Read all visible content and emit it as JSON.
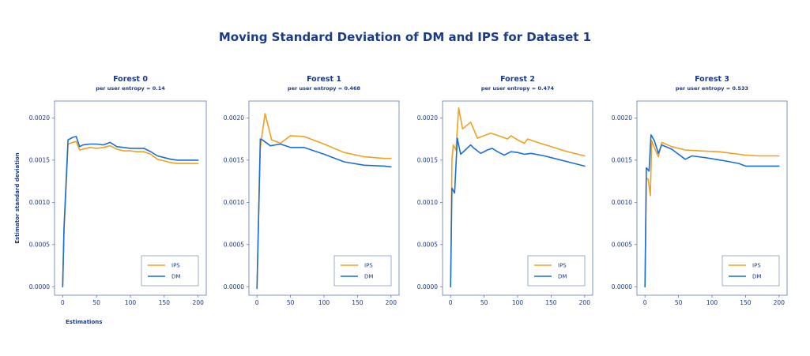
{
  "title": "Moving Standard Deviation of DM and IPS for Dataset 1",
  "colors": {
    "IPS": "#f0a020",
    "DM": "#1a6fd6",
    "axis": "#5a7ab0",
    "text": "#1a3a8a"
  },
  "chart_data": [
    {
      "type": "line",
      "title": "Forest 0",
      "subtitle": "per user entropy = 0.14",
      "xlabel": "Estimations",
      "ylabel": "Estimator standard deviation",
      "xlim": [
        -12,
        212
      ],
      "ylim": [
        -0.0001,
        0.0022
      ],
      "xticks": [
        0,
        50,
        100,
        150,
        200
      ],
      "yticks": [
        "0.0000",
        "0.0005",
        "0.0010",
        "0.0015",
        "0.0020"
      ],
      "legend": "bottom-right",
      "series": [
        {
          "name": "IPS",
          "x": [
            0,
            2,
            8,
            15,
            20,
            25,
            30,
            40,
            50,
            60,
            70,
            80,
            90,
            100,
            110,
            120,
            130,
            140,
            150,
            160,
            170,
            180,
            190,
            200
          ],
          "y": [
            0.0,
            0.00065,
            0.00169,
            0.00171,
            0.00172,
            0.00162,
            0.00163,
            0.00165,
            0.00164,
            0.00165,
            0.00167,
            0.00163,
            0.00161,
            0.00161,
            0.0016,
            0.0016,
            0.00157,
            0.00151,
            0.00149,
            0.00147,
            0.00146,
            0.00146,
            0.00146,
            0.00146
          ]
        },
        {
          "name": "DM",
          "x": [
            0,
            2,
            8,
            15,
            20,
            25,
            30,
            40,
            50,
            60,
            70,
            80,
            90,
            100,
            110,
            120,
            130,
            140,
            150,
            160,
            170,
            180,
            190,
            200
          ],
          "y": [
            0.0,
            0.0007,
            0.00174,
            0.00177,
            0.00178,
            0.00166,
            0.00168,
            0.00169,
            0.00169,
            0.00168,
            0.00171,
            0.00166,
            0.00165,
            0.00164,
            0.00164,
            0.00164,
            0.0016,
            0.00155,
            0.00153,
            0.00151,
            0.0015,
            0.0015,
            0.0015,
            0.0015
          ]
        }
      ]
    },
    {
      "type": "line",
      "title": "Forest 1",
      "subtitle": "per user entropy = 0.468",
      "xlim": [
        -12,
        212
      ],
      "ylim": [
        -0.0001,
        0.0022
      ],
      "xticks": [
        0,
        50,
        100,
        150,
        200
      ],
      "yticks": [
        "0.0000",
        "0.0005",
        "0.0010",
        "0.0015",
        "0.0020"
      ],
      "legend": "bottom-right",
      "series": [
        {
          "name": "IPS",
          "x": [
            0,
            5,
            12,
            22,
            35,
            50,
            70,
            100,
            130,
            160,
            190,
            200
          ],
          "y": [
            -2e-05,
            0.00165,
            0.00205,
            0.00174,
            0.0017,
            0.00179,
            0.00178,
            0.00169,
            0.00159,
            0.00154,
            0.00152,
            0.00152
          ]
        },
        {
          "name": "DM",
          "x": [
            0,
            5,
            8,
            20,
            35,
            50,
            70,
            100,
            130,
            160,
            190,
            200
          ],
          "y": [
            -2e-05,
            0.00175,
            0.00174,
            0.00167,
            0.00169,
            0.00165,
            0.00165,
            0.00157,
            0.00148,
            0.00144,
            0.00143,
            0.00142
          ]
        }
      ]
    },
    {
      "type": "line",
      "title": "Forest 2",
      "subtitle": "per user entropy = 0.474",
      "xlim": [
        -12,
        212
      ],
      "ylim": [
        -0.0001,
        0.0022
      ],
      "xticks": [
        0,
        50,
        100,
        150,
        200
      ],
      "yticks": [
        "0.0000",
        "0.0005",
        "0.0010",
        "0.0015",
        "0.0020"
      ],
      "legend": "bottom-right",
      "series": [
        {
          "name": "IPS",
          "x": [
            0,
            2,
            4,
            8,
            12,
            18,
            30,
            40,
            50,
            60,
            75,
            85,
            90,
            100,
            110,
            115,
            130,
            150,
            170,
            190,
            200
          ],
          "y": [
            0.0,
            0.0015,
            0.00168,
            0.00162,
            0.00212,
            0.00187,
            0.00195,
            0.00176,
            0.00179,
            0.00182,
            0.00178,
            0.00175,
            0.00179,
            0.00174,
            0.0017,
            0.00175,
            0.00171,
            0.00166,
            0.00161,
            0.00157,
            0.00155
          ]
        },
        {
          "name": "DM",
          "x": [
            0,
            2,
            6,
            10,
            15,
            22,
            30,
            35,
            45,
            55,
            62,
            70,
            80,
            85,
            90,
            100,
            110,
            120,
            140,
            160,
            180,
            200
          ],
          "y": [
            0.0,
            0.00117,
            0.00111,
            0.00176,
            0.00157,
            0.00162,
            0.00168,
            0.00164,
            0.00158,
            0.00162,
            0.00164,
            0.0016,
            0.00156,
            0.00158,
            0.0016,
            0.00159,
            0.00157,
            0.00158,
            0.00155,
            0.00151,
            0.00147,
            0.00143
          ]
        }
      ]
    },
    {
      "type": "line",
      "title": "Forest 3",
      "subtitle": "per user entropy = 0.533",
      "xlim": [
        -12,
        212
      ],
      "ylim": [
        -0.0001,
        0.0022
      ],
      "xticks": [
        0,
        50,
        100,
        150,
        200
      ],
      "yticks": [
        "0.0000",
        "0.0005",
        "0.0010",
        "0.0015",
        "0.0020"
      ],
      "legend": "bottom-right",
      "series": [
        {
          "name": "IPS",
          "x": [
            0,
            2,
            5,
            8,
            10,
            15,
            20,
            25,
            40,
            60,
            80,
            110,
            130,
            150,
            170,
            200
          ],
          "y": [
            0.0,
            0.00129,
            0.00127,
            0.00108,
            0.00173,
            0.00163,
            0.00154,
            0.00171,
            0.00166,
            0.00162,
            0.00161,
            0.0016,
            0.00158,
            0.00156,
            0.00155,
            0.00155
          ]
        },
        {
          "name": "DM",
          "x": [
            0,
            2,
            6,
            9,
            14,
            20,
            25,
            40,
            60,
            70,
            90,
            120,
            140,
            150,
            170,
            200
          ],
          "y": [
            0.0,
            0.00141,
            0.00137,
            0.0018,
            0.00173,
            0.00158,
            0.00168,
            0.00163,
            0.00151,
            0.00155,
            0.00153,
            0.00149,
            0.00146,
            0.00143,
            0.00143,
            0.00143
          ]
        }
      ]
    }
  ]
}
